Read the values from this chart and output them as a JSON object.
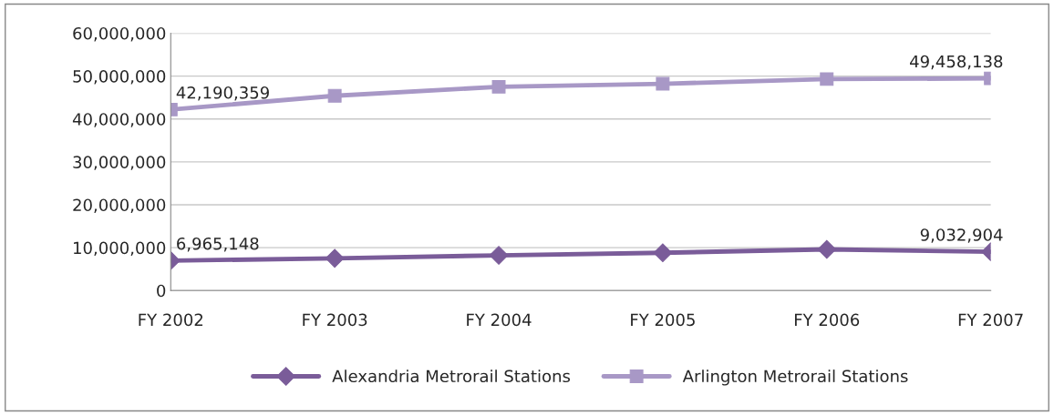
{
  "chart_data": {
    "type": "line",
    "categories": [
      "FY 2002",
      "FY 2003",
      "FY 2004",
      "FY 2005",
      "FY 2006",
      "FY 2007"
    ],
    "series": [
      {
        "name": "Alexandria Metrorail Stations",
        "color": "#7a5c99",
        "marker": "diamond",
        "values": [
          6965148,
          7500000,
          8200000,
          8800000,
          9600000,
          9032904
        ],
        "value_labels": [
          "6,965,148",
          null,
          null,
          null,
          null,
          "9,032,904"
        ]
      },
      {
        "name": "Arlington Metrorail Stations",
        "color": "#a898c6",
        "marker": "square",
        "values": [
          42190359,
          45400000,
          47500000,
          48200000,
          49300000,
          49458138
        ],
        "value_labels": [
          "42,190,359",
          null,
          null,
          null,
          null,
          "49,458,138"
        ]
      }
    ],
    "ylim": [
      0,
      60000000
    ],
    "yticks": [
      {
        "value": 0,
        "label": "0"
      },
      {
        "value": 10000000,
        "label": "10,000,000"
      },
      {
        "value": 20000000,
        "label": "20,000,000"
      },
      {
        "value": 30000000,
        "label": "30,000,000"
      },
      {
        "value": 40000000,
        "label": "40,000,000"
      },
      {
        "value": 50000000,
        "label": "50,000,000"
      },
      {
        "value": 60000000,
        "label": "60,000,000"
      }
    ],
    "grid": "y",
    "legend": "bottom"
  }
}
